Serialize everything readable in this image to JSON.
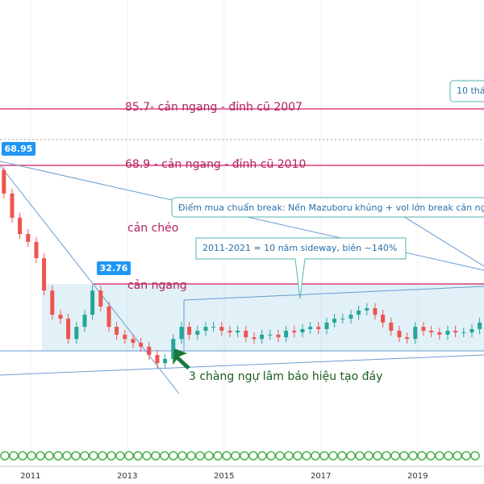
{
  "chart_data": {
    "type": "candlestick",
    "x": [
      2010.45,
      2010.62,
      2010.78,
      2010.95,
      2011.12,
      2011.28,
      2011.45,
      2011.62,
      2011.78,
      2011.95,
      2012.12,
      2012.28,
      2012.45,
      2012.62,
      2012.78,
      2012.95,
      2013.12,
      2013.28,
      2013.45,
      2013.62,
      2013.78,
      2013.95,
      2014.12,
      2014.28,
      2014.45,
      2014.62,
      2014.78,
      2014.95,
      2015.12,
      2015.28,
      2015.45,
      2015.62,
      2015.78,
      2015.95,
      2016.12,
      2016.28,
      2016.45,
      2016.62,
      2016.78,
      2016.95,
      2017.12,
      2017.28,
      2017.45,
      2017.62,
      2017.78,
      2017.95,
      2018.12,
      2018.28,
      2018.45,
      2018.62,
      2018.78,
      2018.95,
      2019.12,
      2019.28,
      2019.45,
      2019.62,
      2019.78,
      2019.95,
      2020.12,
      2020.28
    ],
    "open": [
      68,
      60.8,
      53.4,
      48.4,
      46.0,
      41.0,
      31.1,
      23.7,
      22.5,
      16.3,
      20.0,
      23.7,
      31.1,
      26.2,
      20.0,
      17.6,
      16.3,
      15.1,
      13.9,
      11.4,
      8.9,
      10.2,
      16.3,
      20.0,
      17.6,
      18.8,
      20.0,
      20.0,
      18.8,
      18.3,
      18.8,
      16.8,
      16.3,
      17.6,
      17.6,
      16.8,
      18.8,
      18.3,
      19.3,
      20.0,
      19.3,
      21.3,
      22.5,
      22.5,
      23.7,
      25.0,
      25.7,
      23.7,
      21.3,
      18.8,
      16.8,
      16.3,
      20.0,
      18.8,
      18.3,
      17.6,
      18.8,
      18.3,
      18.3,
      19.3
    ],
    "high": [
      68.95,
      62.3,
      54.9,
      49.9,
      47.5,
      42.5,
      32.6,
      25.2,
      24.0,
      21.5,
      25.2,
      32.76,
      32.6,
      27.7,
      21.5,
      19.1,
      17.8,
      16.6,
      15.4,
      12.9,
      11.7,
      17.8,
      21.5,
      21.5,
      20.3,
      21.5,
      21.5,
      21.5,
      20.3,
      20.3,
      20.3,
      18.3,
      19.1,
      19.1,
      19.1,
      20.3,
      20.3,
      20.8,
      21.5,
      21.5,
      22.8,
      24.0,
      24.0,
      25.2,
      26.5,
      27.2,
      27.2,
      25.2,
      22.8,
      20.3,
      18.3,
      21.5,
      21.5,
      20.3,
      19.8,
      20.3,
      20.3,
      19.8,
      20.8,
      22.8
    ],
    "low": [
      59.3,
      51.9,
      46.9,
      44.5,
      39.5,
      29.6,
      22.2,
      21.0,
      14.8,
      14.8,
      18.5,
      22.2,
      24.7,
      18.5,
      16.1,
      14.8,
      13.6,
      12.4,
      9.9,
      7.4,
      7.4,
      8.7,
      14.8,
      16.1,
      16.1,
      17.3,
      18.5,
      17.3,
      16.8,
      16.8,
      15.3,
      14.8,
      14.8,
      16.1,
      15.3,
      15.3,
      16.8,
      16.8,
      17.8,
      17.8,
      17.8,
      19.8,
      21.0,
      21.0,
      22.2,
      23.5,
      22.2,
      19.8,
      17.3,
      15.3,
      14.8,
      14.8,
      17.3,
      16.8,
      16.1,
      16.1,
      16.8,
      16.8,
      16.8,
      17.8
    ],
    "close": [
      60.8,
      53.4,
      48.4,
      46.0,
      41.0,
      31.1,
      23.7,
      22.5,
      16.3,
      20.0,
      23.7,
      31.1,
      26.2,
      20.0,
      17.6,
      16.3,
      15.1,
      13.9,
      11.4,
      8.9,
      10.2,
      16.3,
      20.0,
      17.6,
      18.8,
      20.0,
      20.0,
      18.8,
      18.3,
      18.8,
      16.8,
      16.3,
      17.6,
      17.6,
      16.8,
      18.8,
      18.3,
      19.3,
      20.0,
      19.3,
      21.3,
      22.5,
      22.5,
      23.7,
      25.0,
      25.7,
      23.7,
      21.3,
      18.8,
      16.8,
      16.3,
      20.0,
      18.8,
      18.3,
      17.6,
      18.8,
      18.3,
      18.3,
      19.3,
      21.3
    ],
    "up_color": "#26a69a",
    "down_color": "#ef5350",
    "xlim": [
      2010.37,
      2020.37
    ],
    "ylim": [
      4,
      120
    ],
    "xticks": [
      2011,
      2013,
      2015,
      2017,
      2019
    ],
    "annotations": [
      "85.7- cản ngang - đỉnh cũ 2007",
      "68.9 - cản ngang - đỉnh cũ 2010",
      "Điểm mua chuẩn break: Nến Mazuboru khủng + vol lớn break cản ng",
      "cản chéo",
      "2011-2021 = 10 năm sideway, biên ~140%",
      "cản ngang",
      "3 chàng ngự lâm báo hiệu tạo đáy",
      "10 thá"
    ]
  }
}
